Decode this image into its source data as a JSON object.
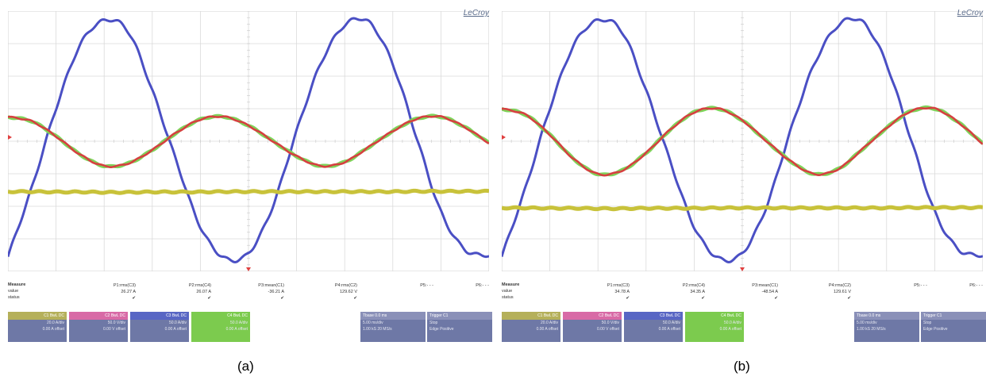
{
  "chart_data": [
    {
      "type": "line",
      "caption": "(a)",
      "brand": "LeCroy",
      "x": [
        0,
        0.05,
        0.1,
        0.15,
        0.2,
        0.25,
        0.3,
        0.35,
        0.4,
        0.45,
        0.5,
        0.55,
        0.6,
        0.65,
        0.7,
        0.75,
        0.8,
        0.85,
        0.9,
        0.95,
        1
      ],
      "ylim": [
        -4,
        4
      ],
      "grid": true,
      "series": [
        {
          "color": "#4a4fc4",
          "values": [
            -3.55,
            -1.41,
            1.01,
            2.96,
            3.71,
            3.37,
            1.56,
            -0.61,
            -2.63,
            -3.59,
            -3.44,
            -2.02,
            0.31,
            2.38,
            3.57,
            3.66,
            2.37,
            0.09,
            -2.17,
            -3.33,
            -3.52
          ]
        },
        {
          "color": "#7fd35a",
          "values": [
            0.75,
            0.61,
            0.15,
            -0.41,
            -0.76,
            -0.68,
            -0.27,
            0.26,
            0.67,
            0.75,
            0.48,
            0.01,
            -0.46,
            -0.76,
            -0.64,
            -0.18,
            0.31,
            0.69,
            0.75,
            0.43,
            -0.06
          ]
        },
        {
          "color": "#d64040",
          "values": [
            0.75,
            0.61,
            0.15,
            -0.41,
            -0.76,
            -0.68,
            -0.27,
            0.26,
            0.67,
            0.75,
            0.48,
            0.01,
            -0.46,
            -0.76,
            -0.64,
            -0.18,
            0.31,
            0.69,
            0.75,
            0.43,
            -0.06
          ]
        },
        {
          "color": "#c8c23a",
          "values": [
            -1.55,
            -1.55,
            -1.56,
            -1.56,
            -1.57,
            -1.57,
            -1.56,
            -1.56,
            -1.56,
            -1.55,
            -1.55,
            -1.55,
            -1.55,
            -1.55,
            -1.55,
            -1.55,
            -1.55,
            -1.54,
            -1.54,
            -1.54,
            -1.54
          ]
        }
      ],
      "measure": {
        "labels": [
          "Measure",
          "value",
          "status"
        ],
        "columns": [
          {
            "name": "P1:rms(C3)",
            "value": "26.27 A",
            "status": "✔"
          },
          {
            "name": "P2:rms(C4)",
            "value": "26.07 A",
            "status": "✔"
          },
          {
            "name": "P3:mean(C1)",
            "value": "-36.21 A",
            "status": "✔"
          },
          {
            "name": "P4:rms(C2)",
            "value": "129.62 V",
            "status": "✔"
          },
          {
            "name": "P5:- - -",
            "value": "",
            "status": ""
          },
          {
            "name": "P6:- - -",
            "value": "",
            "status": ""
          }
        ]
      },
      "channels": [
        {
          "header": "C1 BwL DC",
          "scale": "20.0 A/div",
          "offset": "0.00 A offset",
          "color": "#b5b05a"
        },
        {
          "header": "C2 BwL DC",
          "scale": "50.0 V/div",
          "offset": "0.00 V offset",
          "color": "#d86aa6"
        },
        {
          "header": "C3 BwL DC",
          "scale": "50.0 A/div",
          "offset": "0.00 A offset",
          "color": "#5866c4"
        },
        {
          "header": "C4 BwL DC",
          "scale": "50.0 A/div",
          "offset": "0.00 A offset",
          "color": "#7ccb4e"
        }
      ],
      "timebase": {
        "header": "Tbase",
        "value": "0.0 ms",
        "rows": [
          "5.00 ms/div",
          "1.00 kS  20 MS/s"
        ]
      },
      "trigger": {
        "header": "Trigger",
        "value": "C1",
        "rows": [
          "Stop",
          "Edge  Positive"
        ]
      }
    },
    {
      "type": "line",
      "caption": "(b)",
      "brand": "LeCroy",
      "x": [
        0,
        0.05,
        0.1,
        0.15,
        0.2,
        0.25,
        0.3,
        0.35,
        0.4,
        0.45,
        0.5,
        0.55,
        0.6,
        0.65,
        0.7,
        0.75,
        0.8,
        0.85,
        0.9,
        0.95,
        1
      ],
      "ylim": [
        -4,
        4
      ],
      "grid": true,
      "series": [
        {
          "color": "#4a4fc4",
          "values": [
            -3.55,
            -1.41,
            1.01,
            2.96,
            3.71,
            3.37,
            1.56,
            -0.61,
            -2.63,
            -3.59,
            -3.44,
            -2.02,
            0.31,
            2.38,
            3.57,
            3.66,
            2.37,
            0.09,
            -2.17,
            -3.33,
            -3.52
          ]
        },
        {
          "color": "#7fd35a",
          "values": [
            1.0,
            0.81,
            0.2,
            -0.55,
            -1.01,
            -0.9,
            -0.36,
            0.35,
            0.89,
            1.0,
            0.64,
            0.01,
            -0.61,
            -1.01,
            -0.85,
            -0.24,
            0.41,
            0.92,
            1.0,
            0.57,
            -0.08
          ]
        },
        {
          "color": "#d64040",
          "values": [
            1.0,
            0.81,
            0.2,
            -0.55,
            -1.01,
            -0.9,
            -0.36,
            0.35,
            0.89,
            1.0,
            0.64,
            0.01,
            -0.61,
            -1.01,
            -0.85,
            -0.24,
            0.41,
            0.92,
            1.0,
            0.57,
            -0.08
          ]
        },
        {
          "color": "#c8c23a",
          "values": [
            -2.05,
            -2.05,
            -2.06,
            -2.06,
            -2.07,
            -2.07,
            -2.06,
            -2.06,
            -2.06,
            -2.05,
            -2.05,
            -2.05,
            -2.05,
            -2.05,
            -2.05,
            -2.05,
            -2.05,
            -2.04,
            -2.04,
            -2.04,
            -2.04
          ]
        }
      ],
      "measure": {
        "labels": [
          "Measure",
          "value",
          "status"
        ],
        "columns": [
          {
            "name": "P1:rms(C3)",
            "value": "34.78 A",
            "status": "✔"
          },
          {
            "name": "P2:rms(C4)",
            "value": "34.35 A",
            "status": "✔"
          },
          {
            "name": "P3:mean(C1)",
            "value": "-48.54 A",
            "status": "✔"
          },
          {
            "name": "P4:rms(C2)",
            "value": "129.61 V",
            "status": "✔"
          },
          {
            "name": "P5:- - -",
            "value": "",
            "status": ""
          },
          {
            "name": "P6:- - -",
            "value": "",
            "status": ""
          }
        ]
      },
      "channels": [
        {
          "header": "C1 BwL DC",
          "scale": "20.0 A/div",
          "offset": "0.00 A offset",
          "color": "#b5b05a"
        },
        {
          "header": "C2 BwL DC",
          "scale": "50.0 V/div",
          "offset": "0.00 V offset",
          "color": "#d86aa6"
        },
        {
          "header": "C3 BwL DC",
          "scale": "50.0 A/div",
          "offset": "0.00 A offset",
          "color": "#5866c4"
        },
        {
          "header": "C4 BwL DC",
          "scale": "50.0 A/div",
          "offset": "0.00 A offset",
          "color": "#7ccb4e"
        }
      ],
      "timebase": {
        "header": "Tbase",
        "value": "0.0 ms",
        "rows": [
          "5.00 ms/div",
          "1.00 kS  20 MS/s"
        ]
      },
      "trigger": {
        "header": "Trigger",
        "value": "C1",
        "rows": [
          "Stop",
          "Edge  Positive"
        ]
      }
    }
  ]
}
